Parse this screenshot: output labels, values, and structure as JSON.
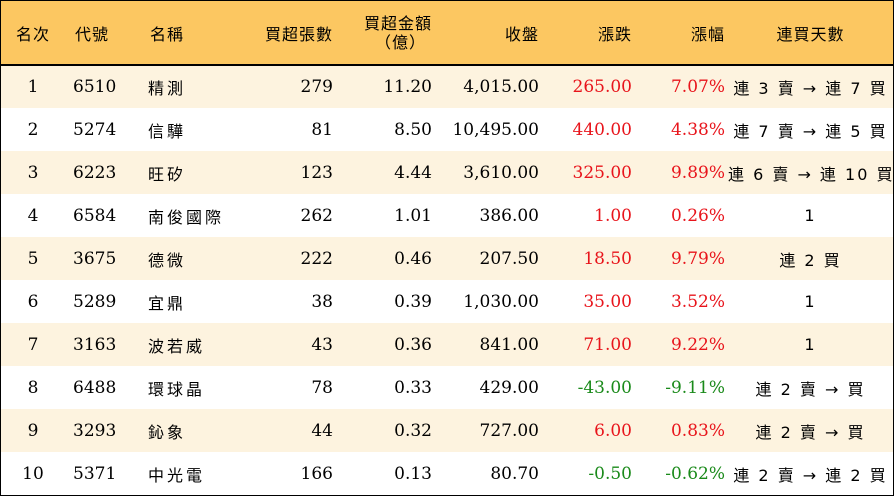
{
  "headers": {
    "rank": "名次",
    "code": "代號",
    "name": "名稱",
    "volume": "買超張數",
    "amount_line1": "買超金額",
    "amount_line2": "（億）",
    "close": "收盤",
    "change": "漲跌",
    "pct": "漲幅",
    "days": "連買天數"
  },
  "colors": {
    "header_bg": "#fcc761",
    "odd_row_bg": "#fdf3df",
    "up": "#e8141b",
    "down": "#1a8a1a"
  },
  "rows": [
    {
      "rank": "1",
      "code": "6510",
      "name": "精測",
      "volume": "279",
      "amount": "11.20",
      "close": "4,015.00",
      "change": "265.00",
      "pct": "7.07%",
      "days": "連 3 賣 → 連 7 買",
      "dir": "up"
    },
    {
      "rank": "2",
      "code": "5274",
      "name": "信驊",
      "volume": "81",
      "amount": "8.50",
      "close": "10,495.00",
      "change": "440.00",
      "pct": "4.38%",
      "days": "連 7 賣 → 連 5 買",
      "dir": "up"
    },
    {
      "rank": "3",
      "code": "6223",
      "name": "旺矽",
      "volume": "123",
      "amount": "4.44",
      "close": "3,610.00",
      "change": "325.00",
      "pct": "9.89%",
      "days": "連 6 賣 → 連 10 買",
      "dir": "up"
    },
    {
      "rank": "4",
      "code": "6584",
      "name": "南俊國際",
      "volume": "262",
      "amount": "1.01",
      "close": "386.00",
      "change": "1.00",
      "pct": "0.26%",
      "days": "1",
      "dir": "up"
    },
    {
      "rank": "5",
      "code": "3675",
      "name": "德微",
      "volume": "222",
      "amount": "0.46",
      "close": "207.50",
      "change": "18.50",
      "pct": "9.79%",
      "days": "連 2 買",
      "dir": "up"
    },
    {
      "rank": "6",
      "code": "5289",
      "name": "宜鼎",
      "volume": "38",
      "amount": "0.39",
      "close": "1,030.00",
      "change": "35.00",
      "pct": "3.52%",
      "days": "1",
      "dir": "up"
    },
    {
      "rank": "7",
      "code": "3163",
      "name": "波若威",
      "volume": "43",
      "amount": "0.36",
      "close": "841.00",
      "change": "71.00",
      "pct": "9.22%",
      "days": "1",
      "dir": "up"
    },
    {
      "rank": "8",
      "code": "6488",
      "name": "環球晶",
      "volume": "78",
      "amount": "0.33",
      "close": "429.00",
      "change": "-43.00",
      "pct": "-9.11%",
      "days": "連 2 賣 → 買",
      "dir": "down"
    },
    {
      "rank": "9",
      "code": "3293",
      "name": "鈊象",
      "volume": "44",
      "amount": "0.32",
      "close": "727.00",
      "change": "6.00",
      "pct": "0.83%",
      "days": "連 2 賣 → 買",
      "dir": "up"
    },
    {
      "rank": "10",
      "code": "5371",
      "name": "中光電",
      "volume": "166",
      "amount": "0.13",
      "close": "80.70",
      "change": "-0.50",
      "pct": "-0.62%",
      "days": "連 2 賣 → 連 2 買",
      "dir": "down"
    }
  ]
}
